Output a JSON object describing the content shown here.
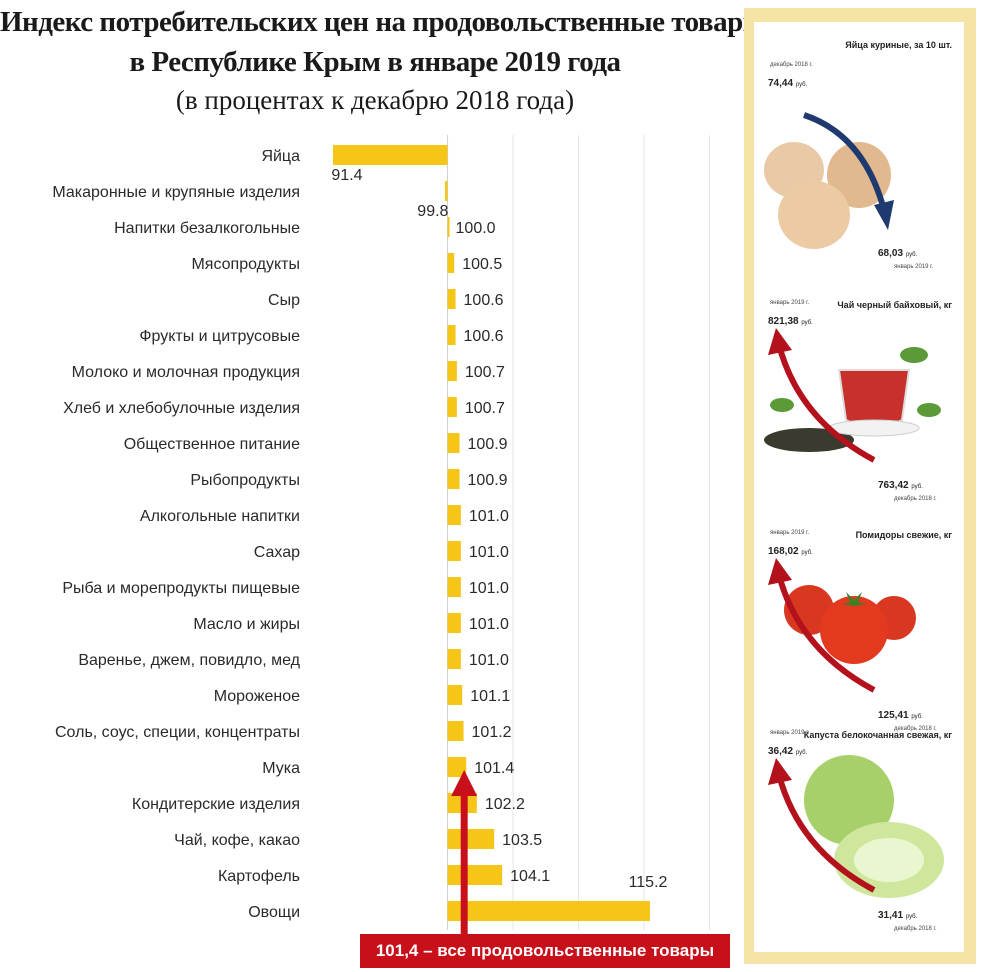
{
  "title": {
    "line1": "Индекс потребительских цен  на продовольственные товары",
    "line2": "в Республике Крым в январе 2019 года",
    "line3": "(в процентах к декабрю 2018 года)"
  },
  "chart_data": {
    "type": "bar",
    "orientation": "horizontal",
    "baseline": 100,
    "grid": true,
    "categories": [
      "Яйца",
      "Макаронные и крупяные изделия",
      "Напитки  безалкогольные",
      "Мясопродукты",
      "Сыр",
      "Фрукты и цитрусовые",
      "Молоко и молочная продукция",
      "Хлеб и хлебобулочные  изделия",
      "Общественное  питание",
      "Рыбопродукты",
      "Алкогольные напитки",
      "Сахар",
      "Рыба и морепродукты пищевые",
      "Масло и жиры",
      "Варенье, джем, повидло, мед",
      "Мороженое",
      "Соль,  соус,  специи,  концентраты",
      "Мука",
      "Кондитерские  изделия",
      "Чай, кофе, какао",
      "Картофель",
      "Овощи"
    ],
    "values": [
      91.4,
      99.8,
      100.0,
      100.5,
      100.6,
      100.6,
      100.7,
      100.7,
      100.9,
      100.9,
      101.0,
      101.0,
      101.0,
      101.0,
      101.0,
      101.1,
      101.2,
      101.4,
      102.2,
      103.5,
      104.1,
      115.2
    ],
    "value_labels": [
      "91.4",
      "99.8",
      "100.0",
      "100.5",
      "100.6",
      "100.6",
      "100.7",
      "100.7",
      "100.9",
      "100.9",
      "101.0",
      "101.0",
      "101.0",
      "101.0",
      "101.0",
      "101.1",
      "101.2",
      "101.4",
      "102.2",
      "103.5",
      "104.1",
      "115.2"
    ],
    "xlim": [
      91.4,
      115.2
    ],
    "bar_color": "#f5c518",
    "total_marker": {
      "value": 101.4,
      "color": "#c8101a"
    }
  },
  "total_box": {
    "text": "101,4 – все продовольственные товары",
    "color": "#c8101a"
  },
  "panel": {
    "border_color": "#f6e4a6",
    "items": [
      {
        "name": "Яйца куриные, за 10 шт.",
        "start_date": "декабрь 2018 г.",
        "start_price": "74,44",
        "end_price": "68,03",
        "end_date": "январь 2019 г.",
        "unit": "руб.",
        "icon": "eggs-image",
        "arrow": "down",
        "arrow_color": "#1f3a6e"
      },
      {
        "name": "Чай черный байховый, кг",
        "start_date": "январь 2019 г.",
        "start_price": "821,38",
        "end_price": "763,42",
        "end_date": "декабрь 2018 г.",
        "unit": "руб.",
        "icon": "tea-cup-image",
        "arrow": "up",
        "arrow_color": "#b3121c"
      },
      {
        "name": "Помидоры свежие, кг",
        "start_date": "январь 2019 г.",
        "start_price": "168,02",
        "end_price": "125,41",
        "end_date": "декабрь 2018 г.",
        "unit": "руб.",
        "icon": "tomatoes-image",
        "arrow": "up",
        "arrow_color": "#b3121c"
      },
      {
        "name": "Капуста белокочанная свежая, кг",
        "start_date": "январь 2019 г.",
        "start_price": "36,42",
        "end_price": "31,41",
        "end_date": "декабрь 2018 г.",
        "unit": "руб.",
        "icon": "cabbage-image",
        "arrow": "up",
        "arrow_color": "#b3121c"
      }
    ]
  }
}
